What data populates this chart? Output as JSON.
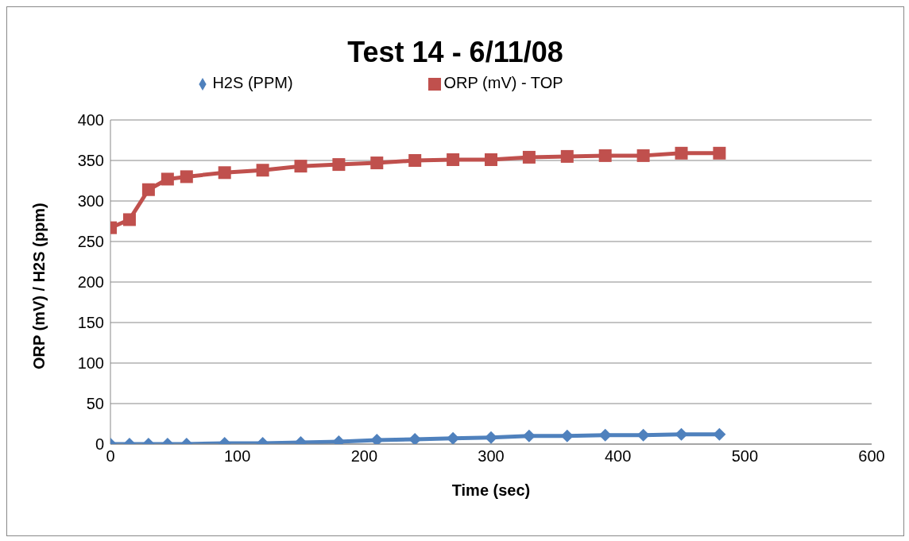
{
  "chart_data": {
    "type": "line",
    "title": "Test 14 - 6/11/08",
    "xlabel": "Time (sec)",
    "ylabel": "ORP (mV) / H2S (ppm)",
    "x": [
      0,
      15,
      30,
      45,
      60,
      90,
      120,
      150,
      180,
      210,
      240,
      270,
      300,
      330,
      360,
      390,
      420,
      450,
      480
    ],
    "series": [
      {
        "name": "H2S (PPM)",
        "color": "#4f81bd",
        "marker": "diamond",
        "values": [
          0,
          0,
          0,
          0,
          0,
          1,
          1,
          2,
          3,
          5,
          6,
          7,
          8,
          10,
          10,
          11,
          11,
          12,
          12
        ]
      },
      {
        "name": "ORP (mV) - TOP",
        "color": "#c0504d",
        "marker": "square",
        "values": [
          267,
          277,
          314,
          327,
          330,
          335,
          338,
          343,
          345,
          347,
          350,
          351,
          351,
          354,
          355,
          356,
          356,
          359,
          359
        ]
      }
    ],
    "xlim": [
      0,
      600
    ],
    "xticks": [
      0,
      100,
      200,
      300,
      400,
      500,
      600
    ],
    "ylim": [
      0,
      400
    ],
    "yticks": [
      0,
      50,
      100,
      150,
      200,
      250,
      300,
      350,
      400
    ],
    "grid": "y",
    "legend": "top",
    "line_style": "solid"
  }
}
